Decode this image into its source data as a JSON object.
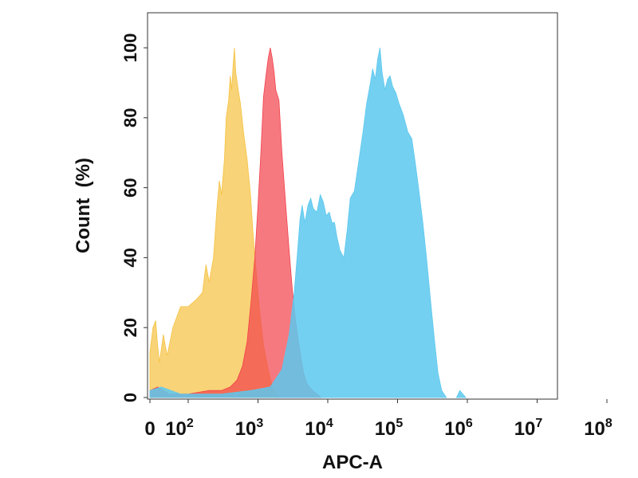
{
  "chart_data": {
    "type": "area",
    "xlabel": "APC-A",
    "ylabel": "Count  (%)",
    "x_scale": "log (biexponential near 0)",
    "y_range": [
      0,
      100
    ],
    "x_range_decades": [
      0,
      8
    ],
    "grid": false,
    "y_ticks": [
      {
        "value": 0,
        "label": "0"
      },
      {
        "value": 20,
        "label": "20"
      },
      {
        "value": 40,
        "label": "40"
      },
      {
        "value": 60,
        "label": "60"
      },
      {
        "value": 80,
        "label": "80"
      },
      {
        "value": 100,
        "label": "100"
      }
    ],
    "x_ticks": [
      {
        "value": 0,
        "base": "0",
        "exp": ""
      },
      {
        "value": 100,
        "base": "10",
        "exp": "2"
      },
      {
        "value": 1000,
        "base": "10",
        "exp": "3"
      },
      {
        "value": 10000,
        "base": "10",
        "exp": "4"
      },
      {
        "value": 100000,
        "base": "10",
        "exp": "5"
      },
      {
        "value": 1000000,
        "base": "10",
        "exp": "6"
      },
      {
        "value": 10000000,
        "base": "10",
        "exp": "7"
      },
      {
        "value": 100000000,
        "base": "10",
        "exp": "8"
      }
    ],
    "series": [
      {
        "color": "#f5c242",
        "opacity": 0.72,
        "points": [
          [
            0,
            13
          ],
          [
            8,
            20
          ],
          [
            15,
            22
          ],
          [
            20,
            15
          ],
          [
            25,
            10
          ],
          [
            35,
            18
          ],
          [
            45,
            12
          ],
          [
            60,
            20
          ],
          [
            80,
            26
          ],
          [
            100,
            26
          ],
          [
            130,
            28
          ],
          [
            160,
            30
          ],
          [
            180,
            38
          ],
          [
            200,
            33
          ],
          [
            230,
            40
          ],
          [
            260,
            55
          ],
          [
            280,
            62
          ],
          [
            300,
            58
          ],
          [
            330,
            68
          ],
          [
            350,
            80
          ],
          [
            380,
            85
          ],
          [
            400,
            92
          ],
          [
            420,
            88
          ],
          [
            440,
            95
          ],
          [
            460,
            100
          ],
          [
            480,
            93
          ],
          [
            520,
            88
          ],
          [
            560,
            84
          ],
          [
            620,
            76
          ],
          [
            700,
            68
          ],
          [
            780,
            58
          ],
          [
            850,
            47
          ],
          [
            950,
            35
          ],
          [
            1050,
            25
          ],
          [
            1200,
            15
          ],
          [
            1400,
            8
          ],
          [
            1600,
            3
          ],
          [
            2000,
            0
          ]
        ]
      },
      {
        "color": "#f2404a",
        "opacity": 0.7,
        "points": [
          [
            0,
            2
          ],
          [
            20,
            3
          ],
          [
            50,
            1
          ],
          [
            100,
            1
          ],
          [
            200,
            2
          ],
          [
            300,
            2
          ],
          [
            400,
            3
          ],
          [
            500,
            5
          ],
          [
            600,
            9
          ],
          [
            700,
            16
          ],
          [
            800,
            28
          ],
          [
            900,
            40
          ],
          [
            1000,
            55
          ],
          [
            1100,
            70
          ],
          [
            1200,
            86
          ],
          [
            1300,
            92
          ],
          [
            1400,
            97
          ],
          [
            1500,
            100
          ],
          [
            1600,
            97
          ],
          [
            1700,
            93
          ],
          [
            1800,
            88
          ],
          [
            2000,
            85
          ],
          [
            2200,
            70
          ],
          [
            2500,
            55
          ],
          [
            2800,
            42
          ],
          [
            3100,
            31
          ],
          [
            3500,
            21
          ],
          [
            4000,
            13
          ],
          [
            4500,
            7
          ],
          [
            5000,
            4
          ],
          [
            6000,
            2
          ],
          [
            7000,
            1
          ],
          [
            8000,
            0
          ]
        ]
      },
      {
        "color": "#5cc8ef",
        "opacity": 0.85,
        "points": [
          [
            0,
            2
          ],
          [
            30,
            3
          ],
          [
            80,
            1
          ],
          [
            300,
            1
          ],
          [
            800,
            2
          ],
          [
            1500,
            3
          ],
          [
            2200,
            8
          ],
          [
            2800,
            18
          ],
          [
            3300,
            30
          ],
          [
            3700,
            42
          ],
          [
            4000,
            51
          ],
          [
            4300,
            55
          ],
          [
            4700,
            50
          ],
          [
            5200,
            55
          ],
          [
            5700,
            57
          ],
          [
            6200,
            54
          ],
          [
            7000,
            53
          ],
          [
            7800,
            58
          ],
          [
            8600,
            56
          ],
          [
            9500,
            52
          ],
          [
            10500,
            53
          ],
          [
            11500,
            50
          ],
          [
            12500,
            50
          ],
          [
            13500,
            46
          ],
          [
            15000,
            42
          ],
          [
            17000,
            40
          ],
          [
            19000,
            48
          ],
          [
            21000,
            57
          ],
          [
            24000,
            59
          ],
          [
            28000,
            68
          ],
          [
            32000,
            76
          ],
          [
            36000,
            84
          ],
          [
            40000,
            89
          ],
          [
            44000,
            94
          ],
          [
            48000,
            91
          ],
          [
            52000,
            97
          ],
          [
            56000,
            100
          ],
          [
            60000,
            93
          ],
          [
            66000,
            88
          ],
          [
            72000,
            91
          ],
          [
            78000,
            92
          ],
          [
            85000,
            89
          ],
          [
            95000,
            87
          ],
          [
            105000,
            84
          ],
          [
            120000,
            81
          ],
          [
            140000,
            76
          ],
          [
            160000,
            74
          ],
          [
            180000,
            67
          ],
          [
            200000,
            60
          ],
          [
            230000,
            50
          ],
          [
            260000,
            40
          ],
          [
            300000,
            27
          ],
          [
            340000,
            16
          ],
          [
            380000,
            7
          ],
          [
            430000,
            2
          ],
          [
            500000,
            0
          ]
        ]
      },
      {
        "color": "#5cc8ef",
        "opacity": 0.85,
        "points": [
          [
            700000,
            0
          ],
          [
            780000,
            2
          ],
          [
            860000,
            1
          ],
          [
            950000,
            0
          ]
        ]
      }
    ]
  }
}
